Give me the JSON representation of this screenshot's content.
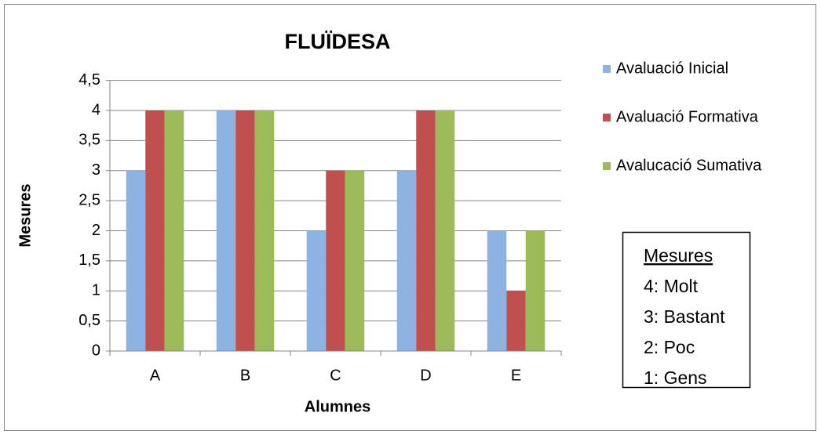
{
  "chart_data": {
    "type": "bar",
    "title": "FLUÏDESA",
    "x_label": "Alumnes",
    "y_label": "Mesures",
    "categories": [
      "A",
      "B",
      "C",
      "D",
      "E"
    ],
    "series": [
      {
        "name": "Avaluació Inicial",
        "color": "#8db3e2",
        "values": [
          3,
          4,
          2,
          3,
          2
        ]
      },
      {
        "name": "Avaluació Formativa",
        "color": "#c0504d",
        "values": [
          4,
          4,
          3,
          4,
          1
        ]
      },
      {
        "name": "Avalucació Sumativa",
        "color": "#9bbb59",
        "values": [
          4,
          4,
          3,
          4,
          2
        ]
      }
    ],
    "ylim": [
      0,
      4.5
    ],
    "yticks": [
      0,
      {
        "value": 0.5,
        "label": "0,5"
      },
      1,
      {
        "value": 1.5,
        "label": "1,5"
      },
      2,
      {
        "value": 2.5,
        "label": "2,5"
      },
      3,
      {
        "value": 3.5,
        "label": "3,5"
      },
      4,
      {
        "value": 4.5,
        "label": "4,5"
      }
    ],
    "grid": true,
    "legend": "right",
    "annotation": {
      "title": "Mesures",
      "lines": [
        "4: Molt",
        "3: Bastant",
        "2: Poc",
        "1: Gens"
      ]
    }
  }
}
